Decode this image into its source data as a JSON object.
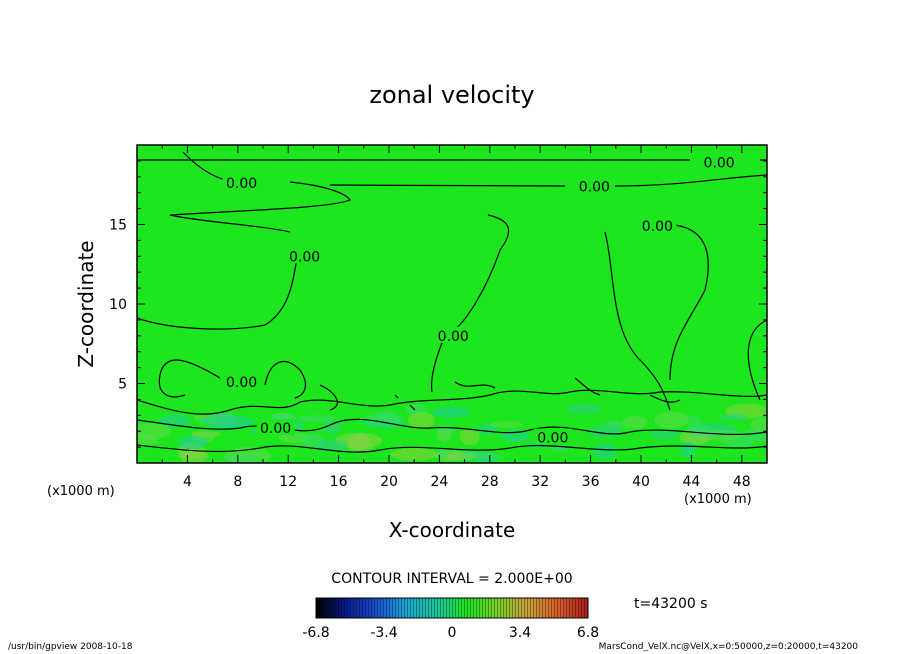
{
  "chart_data": {
    "type": "heatmap",
    "title": "zonal velocity",
    "xlabel": "X-coordinate",
    "ylabel": "Z-coordinate",
    "x_unit_left": "(x1000 m)",
    "x_unit_right": "(x1000 m)",
    "xlim": [
      0,
      50
    ],
    "ylim": [
      0,
      20
    ],
    "x_ticks": [
      4,
      8,
      12,
      16,
      20,
      24,
      28,
      32,
      36,
      40,
      44,
      48
    ],
    "y_ticks": [
      5,
      10,
      15
    ],
    "field_background_color": "#1ee61e",
    "contour_labels": [
      {
        "text": "0.00",
        "x": 46.2,
        "y": 18.9
      },
      {
        "text": "0.00",
        "x": 8.3,
        "y": 17.6
      },
      {
        "text": "0.00",
        "x": 36.3,
        "y": 17.4
      },
      {
        "text": "0.00",
        "x": 41.3,
        "y": 14.9
      },
      {
        "text": "0.00",
        "x": 13.3,
        "y": 13.0
      },
      {
        "text": "0.00",
        "x": 25.1,
        "y": 8.0
      },
      {
        "text": "0.00",
        "x": 8.3,
        "y": 5.1
      },
      {
        "text": "0.00",
        "x": 11.0,
        "y": 2.2
      },
      {
        "text": "0.00",
        "x": 33.0,
        "y": 1.6
      }
    ],
    "contour_interval_text": "CONTOUR INTERVAL = 2.000E+00",
    "colorbar": {
      "range": [
        -6.8,
        6.8
      ],
      "ticks": [
        "-6.8",
        "-3.4",
        "0",
        "3.4",
        "6.8"
      ],
      "colors": [
        "#000000",
        "#0a1a8c",
        "#1a4fd0",
        "#1aa8d8",
        "#1ec89a",
        "#1ee61e",
        "#7ad02a",
        "#c8a03a",
        "#d8602a",
        "#b01a1a"
      ]
    },
    "time_label": "t=43200  s"
  },
  "footer": {
    "left": "/usr/bin/gpview   2008-10-18",
    "right": "MarsCond_VelX.nc@VelX,x=0:50000,z=0:20000,t=43200"
  }
}
